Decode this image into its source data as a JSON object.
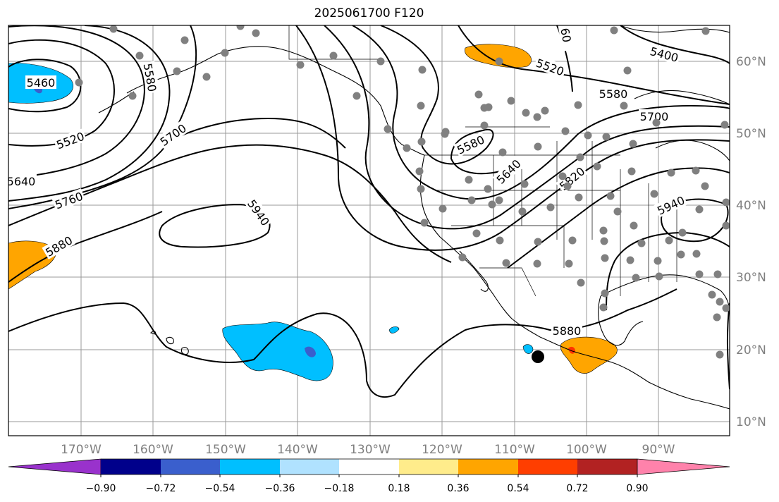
{
  "title": "2025061700 F120",
  "map": {
    "type": "height-contour-map",
    "grid": true,
    "lat_labels": [
      "10°N",
      "20°N",
      "30°N",
      "40°N",
      "50°N",
      "60°N"
    ],
    "lon_labels": [
      "170°W",
      "160°W",
      "150°W",
      "140°W",
      "130°W",
      "120°W",
      "110°W",
      "100°W",
      "90°W"
    ],
    "contour_labels": [
      "5460",
      "5520",
      "5580",
      "5640",
      "5700",
      "5760",
      "5880",
      "5940",
      "5940",
      "5520",
      "5580",
      "5700",
      "5580",
      "5640",
      "5820",
      "5940",
      "5880",
      "5400",
      "60"
    ],
    "shading_colors": {
      "neg_strong": "#3a5fcd",
      "neg_medium": "#00bfff",
      "pos_medium": "#ffa500",
      "pos_strong": "#ff3300"
    },
    "station_color": "#808080",
    "storm_marker_color": "#000000"
  },
  "colorbar": {
    "colors": [
      "#9932cc",
      "#00008b",
      "#3a5fcd",
      "#00bfff",
      "#b0e2ff",
      "#ffffff",
      "#ffec8b",
      "#ffa500",
      "#ff3e00",
      "#b22222",
      "#ff82ab"
    ],
    "tick_labels": [
      "−0.90",
      "−0.72",
      "−0.54",
      "−0.36",
      "−0.18",
      "0.18",
      "0.36",
      "0.54",
      "0.72",
      "0.90"
    ]
  }
}
